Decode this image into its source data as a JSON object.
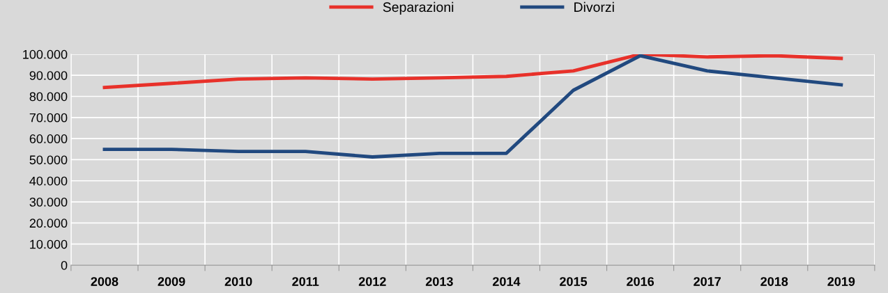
{
  "chart_data": {
    "type": "line",
    "categories": [
      "2008",
      "2009",
      "2010",
      "2011",
      "2012",
      "2013",
      "2014",
      "2015",
      "2016",
      "2017",
      "2018",
      "2019"
    ],
    "series": [
      {
        "name": "Separazioni",
        "color": "#e8312a",
        "values": [
          84200,
          86200,
          88200,
          88800,
          88200,
          88800,
          89500,
          92100,
          100000,
          98700,
          99300,
          98000
        ]
      },
      {
        "name": "Divorzi",
        "color": "#21497f",
        "values": [
          54900,
          54900,
          53900,
          53900,
          51300,
          53000,
          53000,
          82900,
          99300,
          92100,
          88800,
          85500
        ]
      }
    ],
    "ylim": [
      0,
      100000
    ],
    "yticks": [
      0,
      {
        "value": 10000,
        "label": "10.000"
      },
      {
        "value": 20000,
        "label": "20.000"
      },
      {
        "value": 30000,
        "label": "30.000"
      },
      {
        "value": 40000,
        "label": "40.000"
      },
      {
        "value": 50000,
        "label": "50.000"
      },
      {
        "value": 60000,
        "label": "60.000"
      },
      {
        "value": 70000,
        "label": "70.000"
      },
      {
        "value": 80000,
        "label": "80.000"
      },
      {
        "value": 90000,
        "label": "90.000"
      },
      {
        "value": 100000,
        "label": "100.000"
      }
    ],
    "grid": true,
    "legend": "top",
    "marker": "none",
    "line_style": "solid"
  }
}
